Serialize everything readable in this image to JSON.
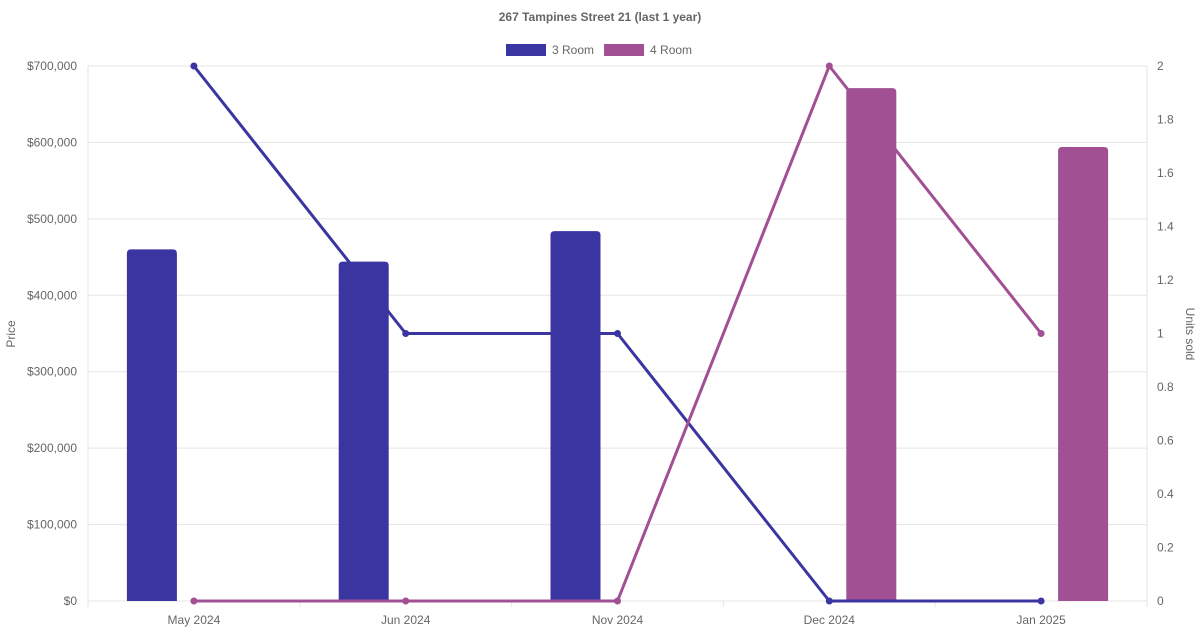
{
  "chart_data": {
    "type": "bar",
    "title": "267 Tampines Street 21 (last 1 year)",
    "categories": [
      "May 2024",
      "Jun 2024",
      "Nov 2024",
      "Dec 2024",
      "Jan 2025"
    ],
    "y_left": {
      "label": "Price",
      "range": [
        0,
        700000
      ],
      "ticks": [
        "$0",
        "$100,000",
        "$200,000",
        "$300,000",
        "$400,000",
        "$500,000",
        "$600,000",
        "$700,000"
      ]
    },
    "y_right": {
      "label": "Units sold",
      "range": [
        0,
        2
      ],
      "ticks": [
        "0",
        "0.2",
        "0.4",
        "0.6",
        "0.8",
        "1",
        "1.2",
        "1.4",
        "1.6",
        "1.8",
        "2"
      ]
    },
    "legend_position": "top",
    "grid": true,
    "series": [
      {
        "name": "3 Room",
        "color": "#3a35a0",
        "price": [
          460000,
          444000,
          484000,
          null,
          null
        ],
        "units": [
          2,
          1,
          1,
          0,
          0
        ]
      },
      {
        "name": "4 Room",
        "color": "#a05093",
        "price": [
          null,
          null,
          null,
          671000,
          594000
        ],
        "units": [
          0,
          0,
          0,
          2,
          1
        ]
      }
    ]
  }
}
